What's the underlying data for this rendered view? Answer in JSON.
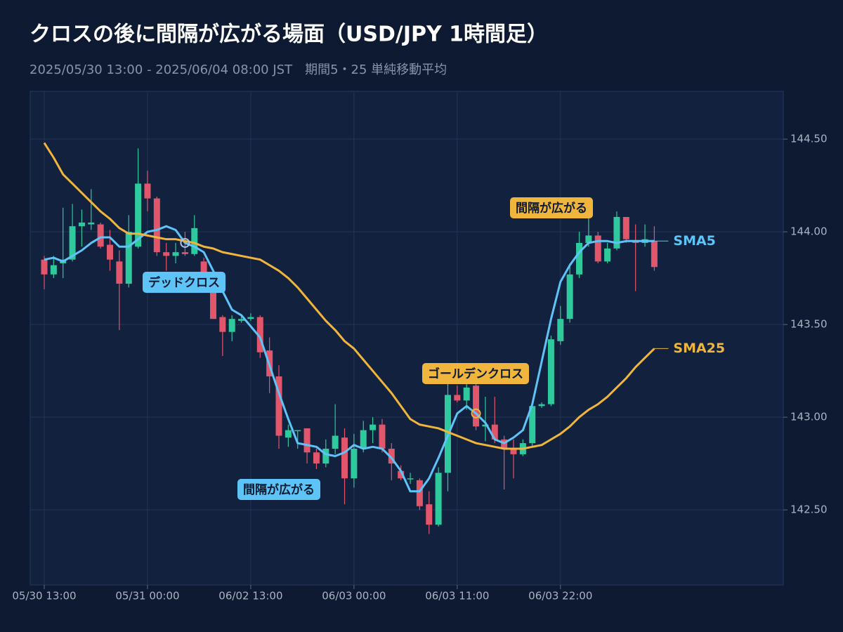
{
  "chart_data": {
    "type": "candlestick",
    "title": "クロスの後に間隔が広がる場面（USD/JPY 1時間足）",
    "subtitle": "2025/05/30 13:00 - 2025/06/04 08:00 JST　期間5・25 単純移動平均",
    "categories": [
      "05/30 13:00",
      null,
      null,
      null,
      null,
      null,
      null,
      null,
      null,
      null,
      null,
      "05/31 00:00",
      null,
      null,
      null,
      null,
      null,
      null,
      null,
      null,
      null,
      null,
      "06/02 13:00",
      null,
      null,
      null,
      null,
      null,
      null,
      null,
      null,
      null,
      null,
      "06/03 00:00",
      null,
      null,
      null,
      null,
      null,
      null,
      null,
      null,
      null,
      null,
      "06/03 11:00",
      null,
      null,
      null,
      null,
      null,
      null,
      null,
      null,
      null,
      null,
      "06/03 22:00",
      null,
      null,
      null,
      null,
      null,
      null,
      null,
      null,
      null,
      null
    ],
    "open": [
      143.85,
      143.77,
      143.83,
      143.85,
      144.03,
      144.04,
      144.04,
      143.93,
      143.84,
      143.72,
      143.92,
      144.26,
      144.18,
      143.89,
      143.87,
      143.89,
      143.88,
      143.84,
      143.78,
      143.54,
      143.46,
      143.52,
      143.53,
      143.54,
      143.36,
      143.22,
      142.89,
      142.93,
      142.94,
      142.81,
      142.75,
      142.83,
      142.89,
      142.67,
      142.83,
      142.93,
      142.96,
      142.83,
      142.71,
      142.67,
      142.66,
      142.53,
      142.42,
      142.7,
      143.12,
      143.09,
      143.17,
      142.95,
      142.96,
      142.88,
      142.83,
      142.8,
      142.86,
      143.06,
      143.07,
      143.41,
      143.53,
      143.77,
      143.94,
      143.98,
      143.84,
      143.91,
      144.08,
      143.95,
      143.94,
      143.95
    ],
    "high": [
      143.87,
      143.87,
      144.13,
      144.15,
      144.12,
      144.23,
      144.05,
      144.01,
      143.9,
      144.09,
      144.45,
      144.33,
      144.19,
      143.94,
      143.94,
      144.0,
      144.09,
      143.86,
      143.79,
      143.55,
      143.55,
      143.55,
      143.56,
      143.55,
      143.43,
      143.28,
      142.96,
      142.93,
      142.94,
      142.83,
      142.88,
      143.07,
      142.94,
      142.91,
      142.98,
      143.0,
      142.99,
      142.86,
      142.74,
      142.7,
      142.67,
      142.6,
      142.73,
      143.18,
      143.17,
      143.19,
      143.19,
      143.11,
      143.11,
      142.9,
      142.88,
      142.88,
      143.07,
      143.08,
      143.44,
      143.6,
      143.83,
      144.0,
      144.09,
      144.0,
      143.94,
      144.11,
      144.08,
      144.04,
      144.04,
      144.03
    ],
    "low": [
      143.69,
      143.75,
      143.75,
      143.84,
      143.92,
      144.01,
      143.91,
      143.79,
      143.47,
      143.7,
      143.91,
      144.11,
      143.87,
      143.79,
      143.83,
      143.87,
      143.87,
      143.75,
      143.53,
      143.33,
      143.41,
      143.51,
      143.52,
      143.32,
      143.13,
      142.83,
      142.84,
      142.83,
      142.75,
      142.72,
      142.73,
      142.8,
      142.53,
      142.62,
      142.81,
      142.86,
      142.81,
      142.66,
      142.66,
      142.64,
      142.5,
      142.37,
      142.41,
      142.6,
      143.08,
      143.04,
      142.93,
      142.87,
      142.86,
      142.61,
      142.67,
      142.79,
      142.84,
      143.05,
      143.06,
      143.39,
      143.51,
      143.75,
      143.92,
      143.83,
      143.83,
      143.9,
      143.94,
      143.68,
      143.92,
      143.79
    ],
    "close": [
      143.77,
      143.82,
      143.85,
      144.03,
      144.05,
      144.05,
      143.92,
      143.85,
      143.72,
      144.0,
      144.26,
      144.18,
      143.89,
      143.87,
      143.89,
      143.88,
      144.02,
      143.78,
      143.53,
      143.46,
      143.53,
      143.53,
      143.54,
      143.35,
      143.22,
      142.9,
      142.93,
      142.93,
      142.81,
      142.75,
      142.83,
      142.9,
      142.67,
      142.83,
      142.93,
      142.96,
      142.83,
      142.75,
      142.67,
      142.67,
      142.52,
      142.42,
      142.7,
      143.12,
      143.09,
      143.16,
      142.95,
      142.96,
      142.88,
      142.83,
      142.8,
      142.86,
      143.06,
      143.07,
      143.42,
      143.53,
      143.77,
      143.94,
      143.98,
      143.84,
      143.91,
      144.08,
      143.96,
      143.94,
      143.96,
      143.81
    ],
    "up_color": "#2ec99d",
    "down_color": "#e2566b",
    "series": [
      {
        "name": "SMA5",
        "color": "#5ec4f8",
        "values": [
          143.85,
          143.86,
          143.84,
          143.87,
          143.9,
          143.94,
          143.97,
          143.97,
          143.92,
          143.92,
          143.96,
          144.0,
          144.01,
          144.03,
          144.01,
          143.94,
          143.92,
          143.89,
          143.79,
          143.68,
          143.58,
          143.55,
          143.49,
          143.43,
          143.28,
          143.13,
          142.99,
          142.86,
          142.85,
          142.84,
          142.8,
          142.79,
          142.81,
          142.85,
          142.83,
          142.84,
          142.83,
          142.78,
          142.71,
          142.6,
          142.6,
          142.67,
          142.78,
          142.9,
          143.02,
          143.06,
          143.02,
          142.97,
          142.88,
          142.86,
          142.89,
          142.93,
          143.07,
          143.3,
          143.53,
          143.73,
          143.82,
          143.89,
          143.94,
          143.95,
          143.95,
          143.94,
          143.95,
          143.95,
          143.95,
          143.95
        ]
      },
      {
        "name": "SMA25",
        "color": "#efb53c",
        "values": [
          144.48,
          144.4,
          144.31,
          144.26,
          144.21,
          144.16,
          144.11,
          144.07,
          144.02,
          143.99,
          143.99,
          143.98,
          143.97,
          143.96,
          143.96,
          143.95,
          143.94,
          143.92,
          143.91,
          143.89,
          143.88,
          143.87,
          143.86,
          143.85,
          143.82,
          143.79,
          143.75,
          143.7,
          143.64,
          143.58,
          143.52,
          143.47,
          143.41,
          143.37,
          143.31,
          143.25,
          143.19,
          143.13,
          143.06,
          142.99,
          142.96,
          142.95,
          142.94,
          142.92,
          142.9,
          142.88,
          142.86,
          142.85,
          142.84,
          142.83,
          142.83,
          142.83,
          142.84,
          142.85,
          142.88,
          142.91,
          142.95,
          143.0,
          143.04,
          143.07,
          143.11,
          143.16,
          143.21,
          143.27,
          143.32,
          143.37
        ]
      }
    ],
    "ylim": [
      142.095,
      144.758
    ],
    "yticks": [
      {
        "value": 142.5,
        "label": "142.50"
      },
      {
        "value": 143,
        "label": "143.00"
      },
      {
        "value": 143.5,
        "label": "143.50"
      },
      {
        "value": 144,
        "label": "144.00"
      },
      {
        "value": 144.5,
        "label": "144.50"
      }
    ],
    "grid": true,
    "annotations": [
      {
        "text": "デッドクロス",
        "color": "#5ec4f8"
      },
      {
        "text": "ゴールデンクロス",
        "color": "#efb53c"
      },
      {
        "text": "間隔が広がる",
        "color": "#efb53c"
      },
      {
        "text": "間隔が広がる",
        "color": "#5ec4f8"
      }
    ]
  }
}
